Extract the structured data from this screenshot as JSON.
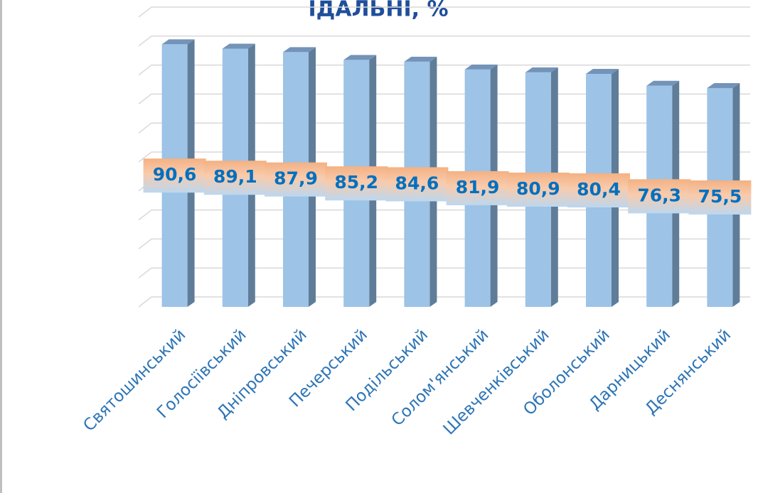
{
  "chart_data": {
    "type": "bar",
    "title": "ІДАЛЬНІ, %",
    "categories": [
      "Святошинський",
      "Голосіївський",
      "Дніпровський",
      "Печерський",
      "Подільський",
      "Солом'янський",
      "Шевченківський",
      "Оболонський",
      "Дарницький",
      "Деснянський"
    ],
    "values": [
      90.6,
      89.1,
      87.9,
      85.2,
      84.6,
      81.9,
      80.9,
      80.4,
      76.3,
      75.5
    ],
    "value_labels": [
      "90,6",
      "89,1",
      "87,9",
      "85,2",
      "84,6",
      "81,9",
      "80,9",
      "80,4",
      "76,3",
      "75,5"
    ],
    "color": "#9dc3e6",
    "ylim": [
      0,
      100
    ],
    "yticks": [
      0,
      10,
      20,
      30,
      40,
      50,
      60,
      70,
      80,
      90,
      100
    ],
    "grid": true
  }
}
